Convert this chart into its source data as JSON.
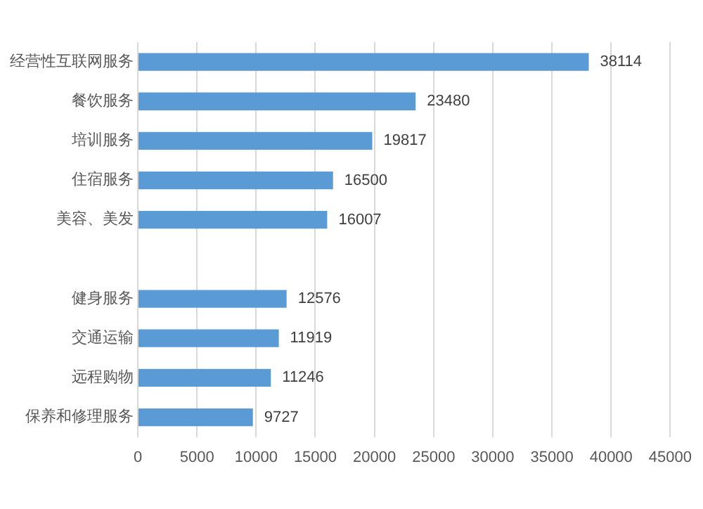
{
  "chart_data": {
    "type": "bar",
    "orientation": "horizontal",
    "categories": [
      "经营性互联网服务",
      "餐饮服务",
      "培训服务",
      "住宿服务",
      "美容、美发",
      null,
      "健身服务",
      "交通运输",
      "远程购物",
      "保养和修理服务"
    ],
    "values": [
      38114,
      23480,
      19817,
      16500,
      16007,
      null,
      12576,
      11919,
      11246,
      9727
    ],
    "color": "#5b9bd5",
    "xlim": [
      0,
      45000
    ],
    "xticks": [
      0,
      5000,
      10000,
      15000,
      20000,
      25000,
      30000,
      35000,
      40000,
      45000
    ],
    "grid": "x",
    "data_labels": true,
    "legend": false
  }
}
